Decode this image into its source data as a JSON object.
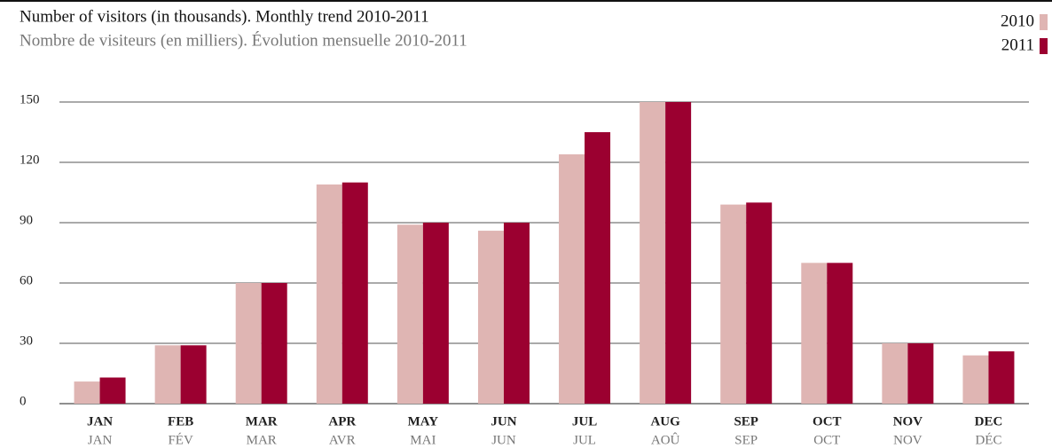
{
  "chart_data": {
    "type": "bar",
    "title": "Number of visitors (in thousands). Monthly trend 2010-2011",
    "subtitle": "Nombre de visiteurs (en milliers). Évolution mensuelle 2010-2011",
    "categories": [
      "JAN",
      "FEB",
      "MAR",
      "APR",
      "MAY",
      "JUN",
      "JUL",
      "AUG",
      "SEP",
      "OCT",
      "NOV",
      "DEC"
    ],
    "categories_fr": [
      "JAN",
      "FÉV",
      "MAR",
      "AVR",
      "MAI",
      "JUN",
      "JUL",
      "AOÛ",
      "SEP",
      "OCT",
      "NOV",
      "DÉC"
    ],
    "series": [
      {
        "name": "2010",
        "color": "#dfb5b3",
        "values": [
          11,
          29,
          60,
          109,
          89,
          86,
          124,
          150,
          99,
          70,
          30,
          24
        ]
      },
      {
        "name": "2011",
        "color": "#9b0030",
        "values": [
          13,
          29,
          60,
          110,
          90,
          90,
          135,
          150,
          100,
          70,
          30,
          26
        ]
      }
    ],
    "ylim": [
      0,
      150
    ],
    "yticks": [
      0,
      30,
      60,
      90,
      120,
      150
    ],
    "grid": true,
    "legend": "top-right"
  }
}
